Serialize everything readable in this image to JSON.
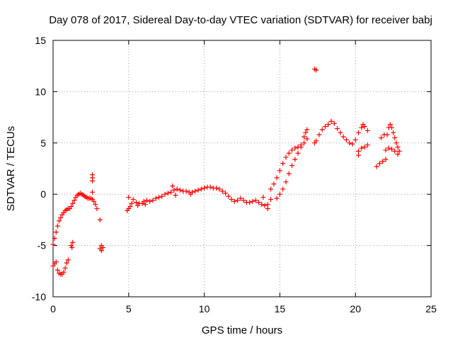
{
  "chart_data": {
    "type": "scatter",
    "title": "Day 078 of 2017, Sidereal Day-to-day VTEC variation (SDTVAR) for receiver babj",
    "xlabel": "GPS time / hours",
    "ylabel": "SDTVAR / TECUs",
    "xlim": [
      0,
      25
    ],
    "ylim": [
      -10,
      15
    ],
    "xticks": [
      0,
      5,
      10,
      15,
      20,
      25
    ],
    "yticks": [
      -10,
      -5,
      0,
      5,
      10,
      15
    ],
    "xtick_labels": [
      "0",
      "5",
      "10",
      "15",
      "20",
      "25"
    ],
    "ytick_labels": [
      "-10",
      "-5",
      "0",
      "5",
      "10",
      "15"
    ],
    "grid": true,
    "marker": "plus",
    "color": "#ff0000",
    "series": [
      {
        "name": "SDTVAR",
        "points": [
          [
            0.0,
            -4.9
          ],
          [
            0.1,
            -4.3
          ],
          [
            0.2,
            -3.7
          ],
          [
            0.3,
            -3.1
          ],
          [
            0.4,
            -2.6
          ],
          [
            0.5,
            -2.3
          ],
          [
            0.6,
            -2.0
          ],
          [
            0.7,
            -1.8
          ],
          [
            0.8,
            -1.6
          ],
          [
            0.9,
            -1.5
          ],
          [
            1.0,
            -1.4
          ],
          [
            1.1,
            -1.4
          ],
          [
            1.2,
            -1.2
          ],
          [
            1.3,
            -0.9
          ],
          [
            1.4,
            -0.6
          ],
          [
            1.5,
            -0.3
          ],
          [
            1.6,
            -0.1
          ],
          [
            1.7,
            0.0
          ],
          [
            1.8,
            0.1
          ],
          [
            1.9,
            0.0
          ],
          [
            2.0,
            -0.1
          ],
          [
            2.1,
            -0.2
          ],
          [
            2.2,
            -0.3
          ],
          [
            2.3,
            -0.4
          ],
          [
            2.4,
            -0.4
          ],
          [
            2.5,
            -0.4
          ],
          [
            2.6,
            -0.5
          ],
          [
            2.7,
            -0.7
          ],
          [
            2.8,
            -1.0
          ],
          [
            2.9,
            -1.4
          ],
          [
            0.0,
            -7.0
          ],
          [
            0.1,
            -6.8
          ],
          [
            0.2,
            -6.6
          ],
          [
            0.3,
            -7.4
          ],
          [
            0.4,
            -7.7
          ],
          [
            0.5,
            -7.8
          ],
          [
            0.6,
            -7.8
          ],
          [
            0.7,
            -7.6
          ],
          [
            0.8,
            -7.2
          ],
          [
            0.9,
            -6.7
          ],
          [
            1.0,
            -6.4
          ],
          [
            1.2,
            -5.0
          ],
          [
            1.3,
            -4.7
          ],
          [
            1.25,
            -5.2
          ],
          [
            2.6,
            1.9
          ],
          [
            2.6,
            1.6
          ],
          [
            2.6,
            1.3
          ],
          [
            2.6,
            0.2
          ],
          [
            3.1,
            -2.5
          ],
          [
            3.1,
            -5.3
          ],
          [
            3.2,
            -5.5
          ],
          [
            3.2,
            -5.0
          ],
          [
            3.3,
            -5.2
          ],
          [
            4.9,
            -1.6
          ],
          [
            5.0,
            -1.4
          ],
          [
            5.1,
            -1.2
          ],
          [
            5.0,
            -0.3
          ],
          [
            5.3,
            -0.5
          ],
          [
            5.5,
            -0.8
          ],
          [
            5.7,
            -0.9
          ],
          [
            5.9,
            -0.9
          ],
          [
            6.0,
            -0.7
          ],
          [
            6.2,
            -0.6
          ],
          [
            6.4,
            -0.7
          ],
          [
            6.6,
            -0.6
          ],
          [
            6.8,
            -0.4
          ],
          [
            7.0,
            -0.3
          ],
          [
            7.2,
            -0.2
          ],
          [
            7.4,
            0.0
          ],
          [
            7.6,
            0.1
          ],
          [
            7.8,
            0.2
          ],
          [
            8.0,
            0.4
          ],
          [
            8.2,
            0.5
          ],
          [
            8.4,
            0.4
          ],
          [
            8.6,
            0.3
          ],
          [
            8.8,
            0.3
          ],
          [
            9.0,
            0.2
          ],
          [
            9.2,
            0.2
          ],
          [
            9.4,
            0.3
          ],
          [
            9.6,
            0.4
          ],
          [
            9.8,
            0.5
          ],
          [
            10.0,
            0.6
          ],
          [
            10.2,
            0.7
          ],
          [
            10.4,
            0.7
          ],
          [
            10.6,
            0.6
          ],
          [
            10.8,
            0.6
          ],
          [
            11.0,
            0.5
          ],
          [
            11.2,
            0.3
          ],
          [
            11.4,
            0.1
          ],
          [
            11.6,
            -0.2
          ],
          [
            11.8,
            -0.5
          ],
          [
            12.0,
            -0.7
          ],
          [
            12.2,
            -0.6
          ],
          [
            12.4,
            -0.4
          ],
          [
            12.6,
            -0.6
          ],
          [
            12.8,
            -0.8
          ],
          [
            13.0,
            -0.8
          ],
          [
            13.2,
            -0.7
          ],
          [
            13.4,
            -0.6
          ],
          [
            13.6,
            -0.8
          ],
          [
            13.8,
            -1.0
          ],
          [
            14.0,
            -1.1
          ],
          [
            14.2,
            -1.0
          ],
          [
            14.4,
            -0.5
          ],
          [
            5.2,
            -0.9
          ],
          [
            5.6,
            -1.1
          ],
          [
            6.1,
            -1.0
          ],
          [
            7.9,
            0.8
          ],
          [
            8.1,
            -0.1
          ],
          [
            9.1,
            0.0
          ],
          [
            13.9,
            -0.3
          ],
          [
            14.2,
            -1.4
          ],
          [
            14.4,
            0.5
          ],
          [
            14.6,
            1.0
          ],
          [
            14.8,
            1.6
          ],
          [
            15.0,
            2.3
          ],
          [
            15.2,
            3.0
          ],
          [
            15.4,
            3.6
          ],
          [
            15.6,
            4.0
          ],
          [
            15.8,
            4.3
          ],
          [
            16.0,
            4.5
          ],
          [
            16.2,
            4.6
          ],
          [
            16.4,
            4.8
          ],
          [
            16.6,
            5.0
          ],
          [
            16.8,
            5.4
          ],
          [
            14.8,
            -0.4
          ],
          [
            15.0,
            0.0
          ],
          [
            15.2,
            0.5
          ],
          [
            15.4,
            1.2
          ],
          [
            15.6,
            2.0
          ],
          [
            15.8,
            2.8
          ],
          [
            16.0,
            3.4
          ],
          [
            16.2,
            4.0
          ],
          [
            16.4,
            4.6
          ],
          [
            16.6,
            5.6
          ],
          [
            16.7,
            6.0
          ],
          [
            16.8,
            6.3
          ],
          [
            17.3,
            12.2
          ],
          [
            17.4,
            12.1
          ],
          [
            17.3,
            5.0
          ],
          [
            17.4,
            5.2
          ],
          [
            17.6,
            5.8
          ],
          [
            17.8,
            6.3
          ],
          [
            18.0,
            6.6
          ],
          [
            18.2,
            6.8
          ],
          [
            18.4,
            7.1
          ],
          [
            18.6,
            6.9
          ],
          [
            18.8,
            6.4
          ],
          [
            19.0,
            6.0
          ],
          [
            19.2,
            5.6
          ],
          [
            19.4,
            5.3
          ],
          [
            19.6,
            5.0
          ],
          [
            19.8,
            4.9
          ],
          [
            20.0,
            5.3
          ],
          [
            20.2,
            6.0
          ],
          [
            20.4,
            6.5
          ],
          [
            20.5,
            6.8
          ],
          [
            20.6,
            6.6
          ],
          [
            20.8,
            6.2
          ],
          [
            20.2,
            4.2
          ],
          [
            20.4,
            4.5
          ],
          [
            20.6,
            4.6
          ],
          [
            20.8,
            4.8
          ],
          [
            20.2,
            3.8
          ],
          [
            21.4,
            2.7
          ],
          [
            21.6,
            3.0
          ],
          [
            21.8,
            3.2
          ],
          [
            22.0,
            3.4
          ],
          [
            22.1,
            5.8
          ],
          [
            22.2,
            6.5
          ],
          [
            22.3,
            6.8
          ],
          [
            22.4,
            6.5
          ],
          [
            22.5,
            6.0
          ],
          [
            22.6,
            5.5
          ],
          [
            22.7,
            5.0
          ],
          [
            22.8,
            4.6
          ],
          [
            22.9,
            4.2
          ],
          [
            22.0,
            4.3
          ],
          [
            22.2,
            4.5
          ],
          [
            22.4,
            4.4
          ],
          [
            22.6,
            4.2
          ],
          [
            22.8,
            3.9
          ],
          [
            21.7,
            5.5
          ],
          [
            21.9,
            5.8
          ]
        ]
      }
    ]
  }
}
